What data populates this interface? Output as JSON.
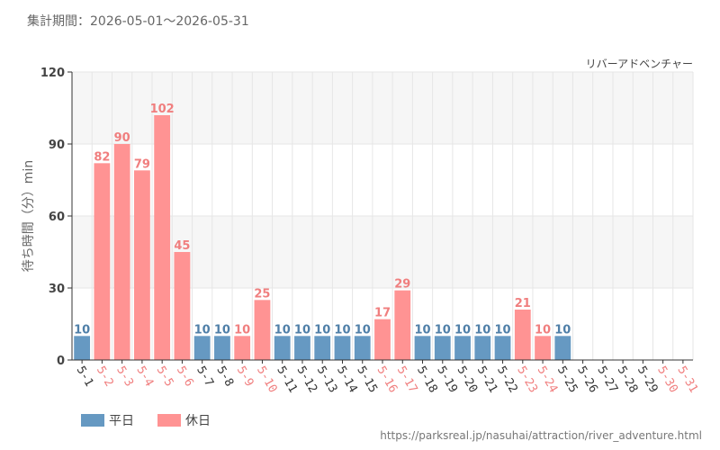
{
  "header": {
    "period": "集計期間：2026-05-01～2026-05-31",
    "attraction": "リバーアドベンチャー"
  },
  "source_url": "https://parksreal.jp/nasuhai/attraction/river_adventure.html",
  "legend": {
    "weekday": "平日",
    "holiday": "休日"
  },
  "colors": {
    "weekday": "#6699c2",
    "holiday": "#ff9393",
    "weekday_label": "#4f7fa8",
    "holiday_label": "#f07e7e",
    "band": "#f6f6f6",
    "grid": "#e6e6e6",
    "axis": "#333333"
  },
  "chart_data": {
    "type": "bar",
    "ylabel": "待ち時間（分）min",
    "ylim": [
      0,
      120
    ],
    "yticks": [
      0,
      30,
      60,
      90,
      120
    ],
    "grid": true,
    "legend_position": "bottom-left",
    "categories": [
      "5-1",
      "5-2",
      "5-3",
      "5-4",
      "5-5",
      "5-6",
      "5-7",
      "5-8",
      "5-9",
      "5-10",
      "5-11",
      "5-12",
      "5-13",
      "5-14",
      "5-15",
      "5-16",
      "5-17",
      "5-18",
      "5-19",
      "5-20",
      "5-21",
      "5-22",
      "5-23",
      "5-24",
      "5-25",
      "5-26",
      "5-27",
      "5-28",
      "5-29",
      "5-30",
      "5-31"
    ],
    "day_types": [
      "weekday",
      "holiday",
      "holiday",
      "holiday",
      "holiday",
      "holiday",
      "weekday",
      "weekday",
      "holiday",
      "holiday",
      "weekday",
      "weekday",
      "weekday",
      "weekday",
      "weekday",
      "holiday",
      "holiday",
      "weekday",
      "weekday",
      "weekday",
      "weekday",
      "weekday",
      "holiday",
      "holiday",
      "weekday",
      "weekday",
      "weekday",
      "weekday",
      "weekday",
      "holiday",
      "holiday"
    ],
    "values": [
      10,
      82,
      90,
      79,
      102,
      45,
      10,
      10,
      10,
      25,
      10,
      10,
      10,
      10,
      10,
      17,
      29,
      10,
      10,
      10,
      10,
      10,
      21,
      10,
      10,
      null,
      null,
      null,
      null,
      null,
      null
    ],
    "series": [
      {
        "name": "平日",
        "key": "weekday"
      },
      {
        "name": "休日",
        "key": "holiday"
      }
    ]
  }
}
